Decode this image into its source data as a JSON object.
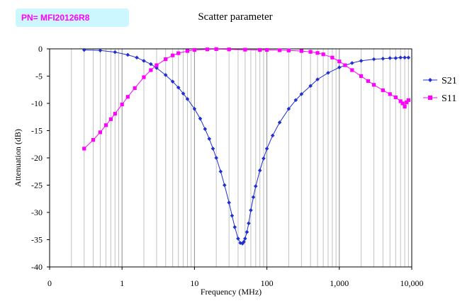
{
  "part_number": "PN= MFI20126R8",
  "chart_data": {
    "type": "scatter",
    "title": "Scatter parameter",
    "xlabel": "Frequency (MHz)",
    "ylabel": "Attenuation (dB)",
    "x_scale": "log",
    "xlim": [
      0.1,
      10000
    ],
    "ylim": [
      -40,
      0
    ],
    "x_ticks": [
      {
        "value": 0.1,
        "label": "0"
      },
      {
        "value": 1,
        "label": "1"
      },
      {
        "value": 10,
        "label": "10"
      },
      {
        "value": 100,
        "label": "100"
      },
      {
        "value": 1000,
        "label": "1,000"
      },
      {
        "value": 10000,
        "label": "10,000"
      }
    ],
    "y_ticks": [
      0,
      -5,
      -10,
      -15,
      -20,
      -25,
      -30,
      -35,
      -40
    ],
    "grid": {
      "vertical": true,
      "horizontal": false
    },
    "legend_placement": "right",
    "series": [
      {
        "name": "S21",
        "color": "#1f2fd0",
        "marker": "diamond",
        "x": [
          0.3,
          0.5,
          0.8,
          1.2,
          1.6,
          2,
          2.5,
          3,
          4,
          5,
          6,
          7,
          8,
          10,
          12,
          14,
          16,
          18,
          20,
          23,
          26,
          30,
          33,
          36,
          40,
          43,
          46,
          48,
          50,
          53,
          56,
          60,
          65,
          70,
          80,
          90,
          100,
          120,
          150,
          200,
          250,
          300,
          400,
          500,
          700,
          1000,
          1500,
          2000,
          3000,
          4000,
          5000,
          6000,
          7000,
          8000,
          9000
        ],
        "y": [
          -0.2,
          -0.3,
          -0.6,
          -1.1,
          -1.6,
          -2.2,
          -2.8,
          -3.5,
          -4.8,
          -6.0,
          -7.1,
          -8.2,
          -9.2,
          -11.0,
          -12.8,
          -14.7,
          -16.5,
          -18.3,
          -20.0,
          -22.5,
          -25.0,
          -28.2,
          -30.6,
          -32.7,
          -34.8,
          -35.6,
          -35.7,
          -35.4,
          -34.8,
          -33.6,
          -32.0,
          -29.6,
          -27.2,
          -25.2,
          -22.3,
          -20.1,
          -18.3,
          -15.9,
          -13.5,
          -11.0,
          -9.4,
          -8.3,
          -6.8,
          -5.6,
          -4.4,
          -3.4,
          -2.6,
          -2.2,
          -1.9,
          -1.8,
          -1.7,
          -1.7,
          -1.6,
          -1.6,
          -1.6
        ]
      },
      {
        "name": "S11",
        "color": "#ff00ff",
        "marker": "square",
        "x": [
          0.3,
          0.4,
          0.5,
          0.6,
          0.7,
          0.8,
          1,
          1.2,
          1.5,
          2,
          2.5,
          3,
          4,
          5,
          6,
          8,
          10,
          15,
          20,
          30,
          50,
          80,
          100,
          150,
          200,
          300,
          400,
          500,
          600,
          800,
          1000,
          1200,
          1500,
          2000,
          2500,
          3000,
          4000,
          5000,
          6000,
          7000,
          7500,
          8000,
          8500,
          9000
        ],
        "y": [
          -18.3,
          -16.7,
          -15.3,
          -14.0,
          -12.9,
          -11.9,
          -10.2,
          -8.8,
          -7.2,
          -5.2,
          -3.9,
          -3.0,
          -1.9,
          -1.2,
          -0.8,
          -0.4,
          -0.2,
          -0.1,
          -0.05,
          -0.1,
          -0.15,
          -0.2,
          -0.2,
          -0.25,
          -0.3,
          -0.4,
          -0.55,
          -0.75,
          -1.0,
          -1.6,
          -2.3,
          -3.0,
          -3.9,
          -5.0,
          -5.9,
          -6.6,
          -7.6,
          -8.3,
          -8.9,
          -9.6,
          -10.0,
          -10.6,
          -9.8,
          -9.4
        ]
      }
    ]
  }
}
